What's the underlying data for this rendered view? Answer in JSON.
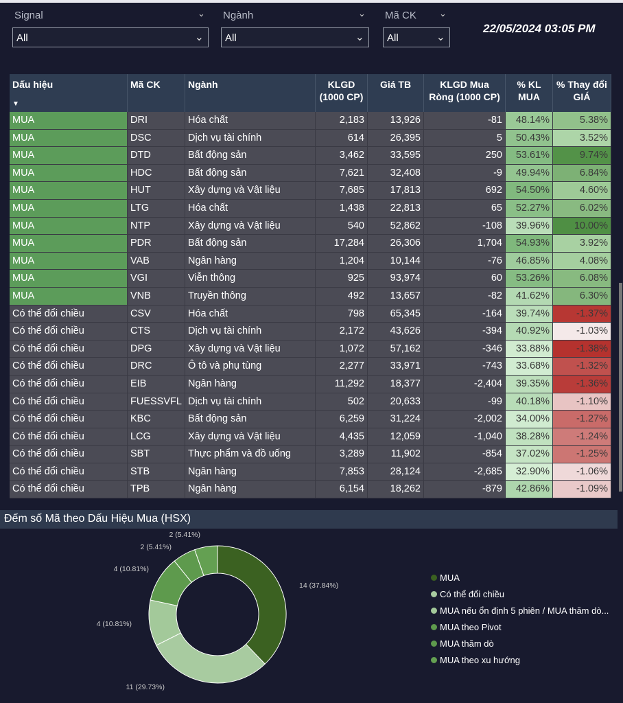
{
  "filters": [
    {
      "label": "Signal",
      "value": "All"
    },
    {
      "label": "Ngành",
      "value": "All"
    },
    {
      "label": "Mã CK",
      "value": "All"
    }
  ],
  "date": "22/05/2024 03:05 PM",
  "table": {
    "headers": [
      "Dấu hiệu",
      "Mã CK",
      "Ngành",
      "KLGD (1000 CP)",
      "Giá TB",
      "KLGD Mua Ròng (1000 CP)",
      "% KL MUA",
      "% Thay đổi GIÁ"
    ],
    "sort_icon": "triangle-down",
    "rows": [
      [
        "MUA",
        "DRI",
        "Hóa chất",
        "2,183",
        "13,926",
        "-81",
        "48.14%",
        "5.38%"
      ],
      [
        "MUA",
        "DSC",
        "Dịch vụ tài chính",
        "614",
        "26,395",
        "5",
        "50.43%",
        "3.52%"
      ],
      [
        "MUA",
        "DTD",
        "Bất động sản",
        "3,462",
        "33,595",
        "250",
        "53.61%",
        "9.74%"
      ],
      [
        "MUA",
        "HDC",
        "Bất động sản",
        "7,621",
        "32,408",
        "-9",
        "49.94%",
        "6.84%"
      ],
      [
        "MUA",
        "HUT",
        "Xây dựng và Vật liệu",
        "7,685",
        "17,813",
        "692",
        "54.50%",
        "4.60%"
      ],
      [
        "MUA",
        "LTG",
        "Hóa chất",
        "1,438",
        "22,813",
        "65",
        "52.27%",
        "6.02%"
      ],
      [
        "MUA",
        "NTP",
        "Xây dựng và Vật liệu",
        "540",
        "52,862",
        "-108",
        "39.96%",
        "10.00%"
      ],
      [
        "MUA",
        "PDR",
        "Bất động sản",
        "17,284",
        "26,306",
        "1,704",
        "54.93%",
        "3.92%"
      ],
      [
        "MUA",
        "VAB",
        "Ngân hàng",
        "1,204",
        "10,144",
        "-76",
        "46.85%",
        "4.08%"
      ],
      [
        "MUA",
        "VGI",
        "Viễn thông",
        "925",
        "93,974",
        "60",
        "53.26%",
        "6.08%"
      ],
      [
        "MUA",
        "VNB",
        "Truyền thông",
        "492",
        "13,657",
        "-82",
        "41.62%",
        "6.30%"
      ],
      [
        "Có thể đổi chiều",
        "CSV",
        "Hóa chất",
        "798",
        "65,345",
        "-164",
        "39.74%",
        "-1.37%"
      ],
      [
        "Có thể đổi chiều",
        "CTS",
        "Dịch vụ tài chính",
        "2,172",
        "43,626",
        "-394",
        "40.92%",
        "-1.03%"
      ],
      [
        "Có thể đổi chiều",
        "DPG",
        "Xây dựng và Vật liệu",
        "1,072",
        "57,162",
        "-346",
        "33.88%",
        "-1.38%"
      ],
      [
        "Có thể đổi chiều",
        "DRC",
        "Ô tô và phụ tùng",
        "2,277",
        "33,971",
        "-743",
        "33.68%",
        "-1.32%"
      ],
      [
        "Có thể đổi chiều",
        "EIB",
        "Ngân hàng",
        "11,292",
        "18,377",
        "-2,404",
        "39.35%",
        "-1.36%"
      ],
      [
        "Có thể đổi chiều",
        "FUESSVFL",
        "Dịch vụ tài chính",
        "502",
        "20,633",
        "-99",
        "40.18%",
        "-1.10%"
      ],
      [
        "Có thể đổi chiều",
        "KBC",
        "Bất động sản",
        "6,259",
        "31,224",
        "-2,002",
        "34.00%",
        "-1.27%"
      ],
      [
        "Có thể đổi chiều",
        "LCG",
        "Xây dựng và Vật liệu",
        "4,435",
        "12,059",
        "-1,040",
        "38.28%",
        "-1.24%"
      ],
      [
        "Có thể đổi chiều",
        "SBT",
        "Thực phẩm và đồ uống",
        "3,289",
        "11,902",
        "-854",
        "37.02%",
        "-1.25%"
      ],
      [
        "Có thể đổi chiều",
        "STB",
        "Ngân hàng",
        "7,853",
        "28,124",
        "-2,685",
        "32.90%",
        "-1.06%"
      ],
      [
        "Có thể đổi chiều",
        "TPB",
        "Ngân hàng",
        "6,154",
        "18,262",
        "-879",
        "42.86%",
        "-1.09%"
      ]
    ]
  },
  "pie": {
    "title": "Đếm số Mã theo Dấu Hiệu Mua (HSX)",
    "slices": [
      {
        "name": "MUA",
        "value": 14,
        "label": "14 (37.84%)",
        "color": "#3b6121"
      },
      {
        "name": "Có thể đổi chiều",
        "value": 11,
        "label": "11 (29.73%)",
        "color": "#a8cba0"
      },
      {
        "name": "MUA nếu ổn định 5 phiên / MUA thăm dò...",
        "value": 4,
        "label": "4 (10.81%)",
        "color": "#a3c99a"
      },
      {
        "name": "MUA theo Pivot",
        "value": 4,
        "label": "4 (10.81%)",
        "color": "#5e9a4d"
      },
      {
        "name": "MUA thăm dò",
        "value": 2,
        "label": "2 (5.41%)",
        "color": "#5e9a4d"
      },
      {
        "name": "MUA theo xu hướng",
        "value": 2,
        "label": "2 (5.41%)",
        "color": "#64a052"
      }
    ]
  }
}
